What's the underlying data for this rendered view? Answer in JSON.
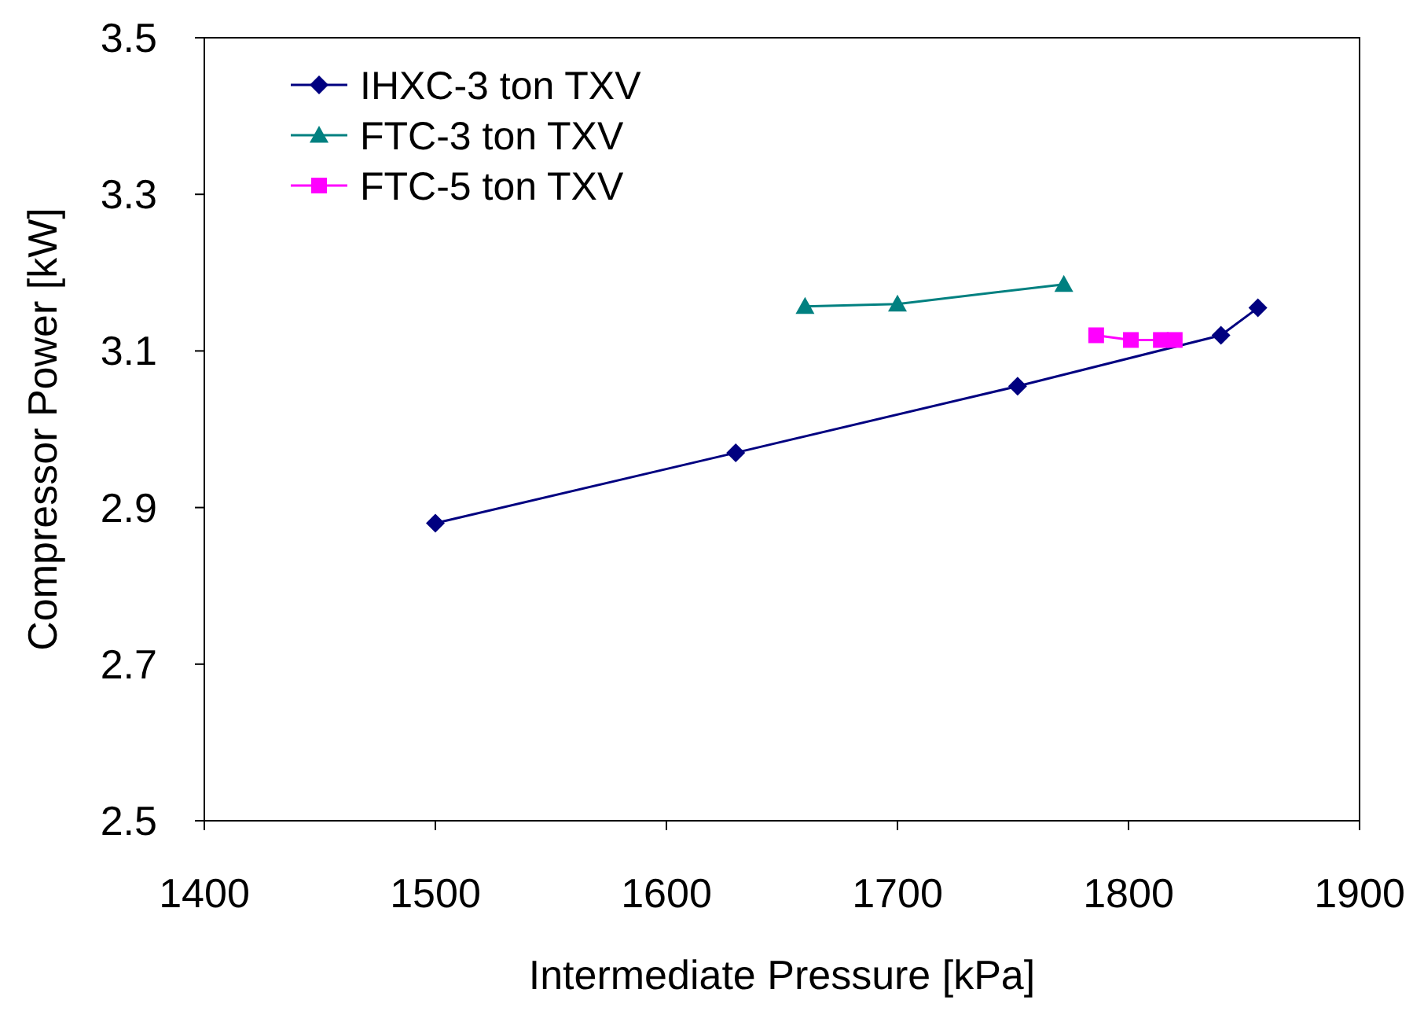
{
  "chart_data": {
    "type": "line",
    "xlabel": "Intermediate Pressure [kPa]",
    "ylabel": "Compressor Power [kW]",
    "xlim": [
      1400,
      1900
    ],
    "xticks": [
      1400,
      1500,
      1600,
      1700,
      1800,
      1900
    ],
    "ylim": [
      2.5,
      3.5
    ],
    "yticks": [
      2.5,
      2.7,
      2.9,
      3.1,
      3.3,
      3.5
    ],
    "grid": false,
    "legend": "top left",
    "series": [
      {
        "name": "IHXC-3 ton TXV",
        "color": "#000080",
        "marker": "diamond",
        "x": [
          1500,
          1630,
          1752,
          1840,
          1856
        ],
        "values": [
          2.88,
          2.97,
          3.055,
          3.12,
          3.155
        ]
      },
      {
        "name": "FTC-3 ton TXV",
        "color": "#008080",
        "marker": "triangle",
        "x": [
          1660,
          1700,
          1772
        ],
        "values": [
          3.157,
          3.16,
          3.185
        ]
      },
      {
        "name": "FTC-5 ton TXV",
        "color": "#ff00ff",
        "marker": "square",
        "x": [
          1786,
          1801,
          1814,
          1820
        ],
        "values": [
          3.12,
          3.114,
          3.114,
          3.114
        ]
      }
    ]
  }
}
